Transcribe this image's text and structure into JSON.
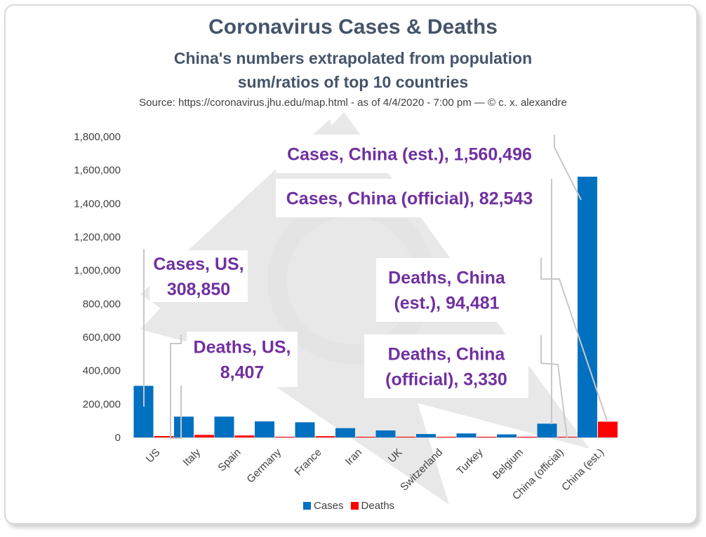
{
  "chart_data": {
    "type": "bar",
    "title": "Coronavirus Cases & Deaths",
    "subtitle_line1": "China's numbers extrapolated from population",
    "subtitle_line2": "sum/ratios of top 10 countries",
    "source": "Source: https://coronavirus.jhu.edu/map.html - as of 4/4/2020 - 7:00 pm — © c. x. alexandre",
    "categories": [
      "US",
      "Italy",
      "Spain",
      "Germany",
      "France",
      "Iran",
      "UK",
      "Switzerland",
      "Turkey",
      "Belgium",
      "China (official)",
      "China (est.)"
    ],
    "series": [
      {
        "name": "Cases",
        "color": "#0070c0",
        "values": [
          308850,
          124632,
          124736,
          96092,
          90848,
          55743,
          41903,
          20505,
          23934,
          18431,
          82543,
          1560496
        ]
      },
      {
        "name": "Deaths",
        "color": "#ff0000",
        "values": [
          8407,
          15362,
          11744,
          1444,
          7574,
          3452,
          4313,
          666,
          501,
          1283,
          3330,
          94481
        ]
      }
    ],
    "ylim": [
      0,
      1800000
    ],
    "yticks": [
      "0",
      "200,000",
      "400,000",
      "600,000",
      "800,000",
      "1,000,000",
      "1,200,000",
      "1,400,000",
      "1,600,000",
      "1,800,000"
    ],
    "annotations": [
      {
        "id": "cases-us",
        "lines": [
          "Cases, US,",
          "308,850"
        ]
      },
      {
        "id": "deaths-us",
        "lines": [
          "Deaths, US,",
          "8,407"
        ]
      },
      {
        "id": "cases-china-est",
        "lines": [
          "Cases, China (est.), 1,560,496"
        ]
      },
      {
        "id": "cases-china-official",
        "lines": [
          "Cases, China (official), 82,543"
        ]
      },
      {
        "id": "deaths-china-est",
        "lines": [
          "Deaths, China",
          "(est.), 94,481"
        ]
      },
      {
        "id": "deaths-china-official",
        "lines": [
          "Deaths, China",
          "(official), 3,330"
        ]
      }
    ],
    "legend": [
      "Cases",
      "Deaths"
    ]
  }
}
